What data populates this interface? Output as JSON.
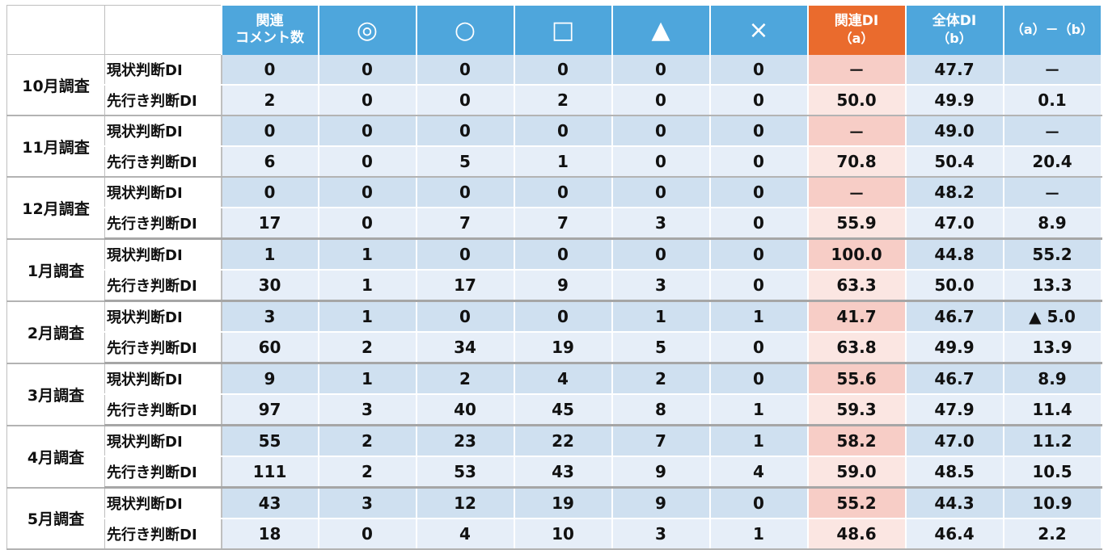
{
  "header": {
    "comments_line1": "関連",
    "comments_line2": "コメント数",
    "sym_double_circle": "◎",
    "sym_circle": "○",
    "sym_square": "□",
    "sym_triangle": "▲",
    "sym_cross": "×",
    "rel_di_line1": "関連DI",
    "rel_di_line2": "（a）",
    "all_di_line1": "全体DI",
    "all_di_line2": "（b）",
    "diff": "（a）－（b）"
  },
  "labels": {
    "current": "現状判断DI",
    "forward": "先行き判断DI"
  },
  "months": [
    {
      "name": "10月調査",
      "current": [
        "0",
        "0",
        "0",
        "0",
        "0",
        "0",
        "－",
        "47.7",
        "－"
      ],
      "forward": [
        "2",
        "0",
        "0",
        "2",
        "0",
        "0",
        "50.0",
        "49.9",
        "0.1"
      ]
    },
    {
      "name": "11月調査",
      "current": [
        "0",
        "0",
        "0",
        "0",
        "0",
        "0",
        "－",
        "49.0",
        "－"
      ],
      "forward": [
        "6",
        "0",
        "5",
        "1",
        "0",
        "0",
        "70.8",
        "50.4",
        "20.4"
      ]
    },
    {
      "name": "12月調査",
      "current": [
        "0",
        "0",
        "0",
        "0",
        "0",
        "0",
        "－",
        "48.2",
        "－"
      ],
      "forward": [
        "17",
        "0",
        "7",
        "7",
        "3",
        "0",
        "55.9",
        "47.0",
        "8.9"
      ]
    },
    {
      "name": "1月調査",
      "current": [
        "1",
        "1",
        "0",
        "0",
        "0",
        "0",
        "100.0",
        "44.8",
        "55.2"
      ],
      "forward": [
        "30",
        "1",
        "17",
        "9",
        "3",
        "0",
        "63.3",
        "50.0",
        "13.3"
      ]
    },
    {
      "name": "2月調査",
      "current": [
        "3",
        "1",
        "0",
        "0",
        "1",
        "1",
        "41.7",
        "46.7",
        "▲ 5.0"
      ],
      "forward": [
        "60",
        "2",
        "34",
        "19",
        "5",
        "0",
        "63.8",
        "49.9",
        "13.9"
      ]
    },
    {
      "name": "3月調査",
      "current": [
        "9",
        "1",
        "2",
        "4",
        "2",
        "0",
        "55.6",
        "46.7",
        "8.9"
      ],
      "forward": [
        "97",
        "3",
        "40",
        "45",
        "8",
        "1",
        "59.3",
        "47.9",
        "11.4"
      ]
    },
    {
      "name": "4月調査",
      "current": [
        "55",
        "2",
        "23",
        "22",
        "7",
        "1",
        "58.2",
        "47.0",
        "11.2"
      ],
      "forward": [
        "111",
        "2",
        "53",
        "43",
        "9",
        "4",
        "59.0",
        "48.5",
        "10.5"
      ]
    },
    {
      "name": "5月調査",
      "current": [
        "43",
        "3",
        "12",
        "19",
        "9",
        "0",
        "55.2",
        "44.3",
        "10.9"
      ],
      "forward": [
        "18",
        "0",
        "4",
        "10",
        "3",
        "1",
        "48.6",
        "46.4",
        "2.2"
      ]
    }
  ],
  "colors": {
    "header_blue": "#4ea6dc",
    "header_orange": "#ea6b2d",
    "row_blue": "#cfe0f0",
    "row_light": "#e6eef8",
    "rel_pink": "#f7cdc6"
  }
}
